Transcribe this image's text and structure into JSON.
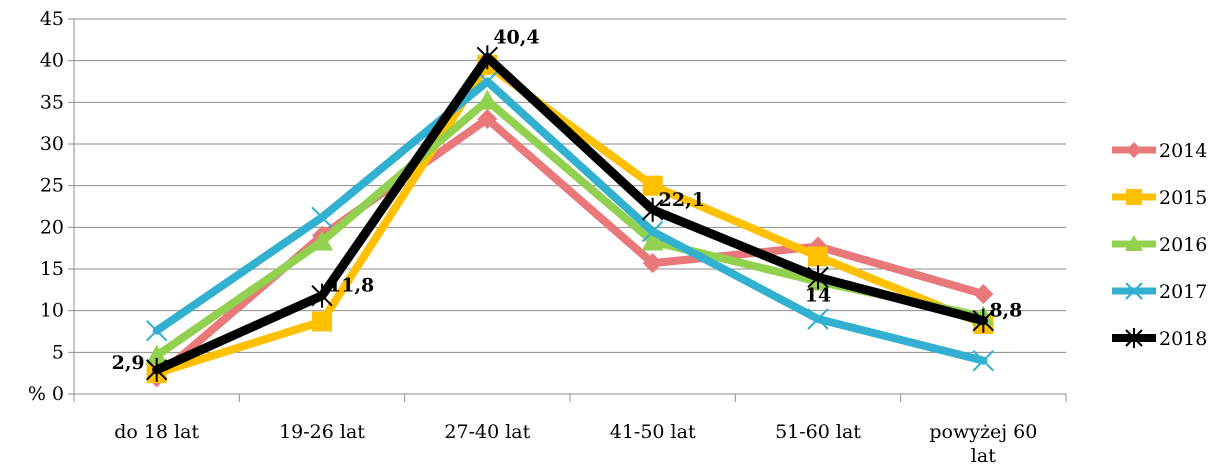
{
  "chart_data": {
    "type": "line",
    "title": "",
    "xlabel": "",
    "ylabel": "",
    "y_zero_label": "% 0",
    "ylim": [
      0,
      45
    ],
    "yticks": [
      0,
      5,
      10,
      15,
      20,
      25,
      30,
      35,
      40,
      45
    ],
    "grid": "horizontal",
    "legend_position": "right",
    "categories": [
      "do 18 lat",
      "19-26 lat",
      "27-40 lat",
      "41-50 lat",
      "51-60 lat",
      [
        "powyżej 60",
        "lat"
      ]
    ],
    "series": [
      {
        "name": "2014",
        "color": "#E8787A",
        "marker": "diamond",
        "values": [
          2.0,
          19.0,
          33.0,
          15.7,
          17.7,
          12.0
        ]
      },
      {
        "name": "2015",
        "color": "#FFC000",
        "marker": "square",
        "values": [
          2.5,
          8.7,
          39.5,
          25.0,
          16.5,
          8.4
        ]
      },
      {
        "name": "2016",
        "color": "#92D050",
        "marker": "triangle",
        "values": [
          4.6,
          18.3,
          35.2,
          18.3,
          13.5,
          9.3
        ]
      },
      {
        "name": "2017",
        "color": "#31B0D0",
        "marker": "x",
        "values": [
          7.6,
          21.2,
          37.5,
          19.5,
          9.0,
          4.0
        ]
      },
      {
        "name": "2018",
        "color": "#000000",
        "marker": "star",
        "values": [
          2.9,
          11.8,
          40.4,
          22.1,
          14.0,
          8.8
        ]
      }
    ],
    "data_labels": [
      {
        "series": "2018",
        "index": 0,
        "text": "2,9",
        "position": "left"
      },
      {
        "series": "2018",
        "index": 1,
        "text": "11,8",
        "position": "right"
      },
      {
        "series": "2018",
        "index": 2,
        "text": "40,4",
        "position": "right"
      },
      {
        "series": "2018",
        "index": 3,
        "text": "22,1",
        "position": "right"
      },
      {
        "series": "2018",
        "index": 4,
        "text": "14",
        "position": "below"
      },
      {
        "series": "2018",
        "index": 5,
        "text": "8,8",
        "position": "right"
      }
    ]
  }
}
